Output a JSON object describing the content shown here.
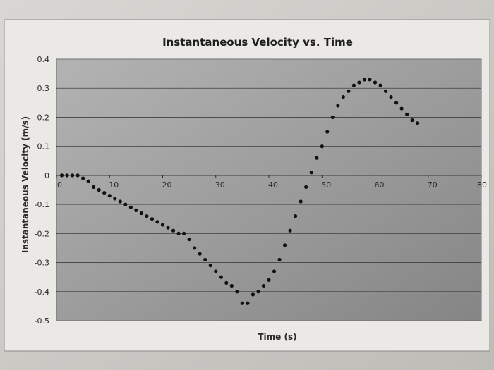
{
  "chart_data": {
    "type": "scatter",
    "title": "Instantaneous Velocity vs. Time",
    "xlabel": "Time (s)",
    "ylabel": "Instantaneous Velocity (m/s)",
    "xlim": [
      0,
      80
    ],
    "ylim": [
      -0.5,
      0.4
    ],
    "x_ticks": [
      "0",
      "10",
      "20",
      "30",
      "40",
      "50",
      "60",
      "70",
      "80"
    ],
    "y_ticks": [
      "0.4",
      "0.3",
      "0.2",
      "0.1",
      "0",
      "-0.1",
      "-0.2",
      "-0.3",
      "-0.4",
      "-0.5"
    ],
    "grid": "horizontal",
    "legend": "none",
    "point_color": "#111111",
    "plot_background": "#9c9c9c",
    "series": [
      {
        "x": [
          1,
          2,
          3,
          4,
          5,
          6,
          7,
          8,
          9,
          10,
          11,
          12,
          13,
          14,
          15,
          16,
          17,
          18,
          19,
          20,
          21,
          22,
          23,
          24,
          25,
          26,
          27,
          28,
          29,
          30,
          31,
          32,
          33,
          34,
          35,
          36,
          37,
          38,
          39,
          40,
          41,
          42,
          43,
          44,
          45,
          46,
          47,
          48,
          49,
          50,
          51,
          52,
          53,
          54,
          55,
          56,
          57,
          58,
          59,
          60,
          61,
          62,
          63,
          64,
          65,
          66,
          67,
          68
        ],
        "y": [
          0.0,
          0.0,
          0.0,
          0.0,
          -0.01,
          -0.02,
          -0.04,
          -0.05,
          -0.06,
          -0.07,
          -0.08,
          -0.09,
          -0.1,
          -0.11,
          -0.12,
          -0.13,
          -0.14,
          -0.15,
          -0.16,
          -0.17,
          -0.18,
          -0.19,
          -0.2,
          -0.2,
          -0.22,
          -0.25,
          -0.27,
          -0.29,
          -0.31,
          -0.33,
          -0.35,
          -0.37,
          -0.38,
          -0.4,
          -0.44,
          -0.44,
          -0.41,
          -0.4,
          -0.38,
          -0.36,
          -0.33,
          -0.29,
          -0.24,
          -0.19,
          -0.14,
          -0.09,
          -0.04,
          0.01,
          0.06,
          0.1,
          0.15,
          0.2,
          0.24,
          0.27,
          0.29,
          0.31,
          0.32,
          0.33,
          0.33,
          0.32,
          0.31,
          0.29,
          0.27,
          0.25,
          0.23,
          0.21,
          0.19,
          0.18
        ]
      }
    ]
  }
}
